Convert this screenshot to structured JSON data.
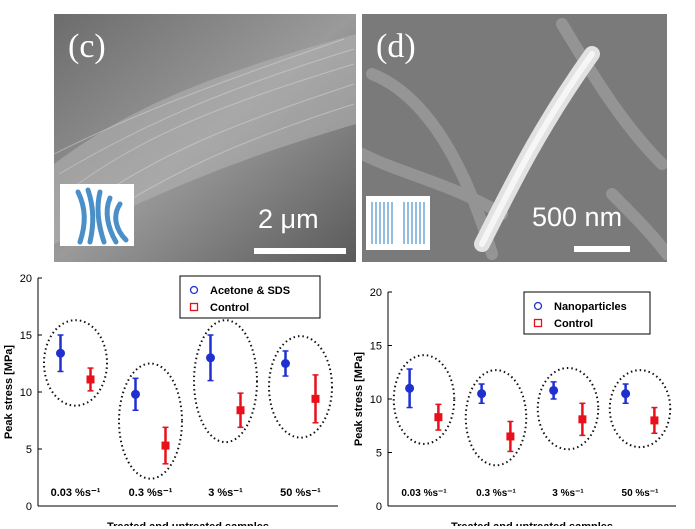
{
  "figure": {
    "panel_c": {
      "label": "(c)",
      "scale_text": "2 μm"
    },
    "panel_d": {
      "label": "(d)",
      "scale_text": "500 nm"
    }
  },
  "colors": {
    "treated": "#1f2fd0",
    "control": "#e8101a",
    "ellipse": "#111111"
  },
  "chart_data": [
    {
      "type": "scatter",
      "title": "",
      "xlabel": "Treated and untreated samples",
      "ylabel": "Peak stress [MPa]",
      "ylim": [
        0,
        20
      ],
      "yticks": [
        0,
        5,
        10,
        15,
        20
      ],
      "categories": [
        "0.03 %s⁻¹",
        "0.3 %s⁻¹",
        "3 %s⁻¹",
        "50 %s⁻¹"
      ],
      "legend_placement": "top-right",
      "series": [
        {
          "name": "Acetone & SDS",
          "values": [
            13.4,
            9.8,
            13.0,
            12.5
          ],
          "err": [
            1.6,
            1.4,
            2.0,
            1.1
          ]
        },
        {
          "name": "Control",
          "values": [
            11.1,
            5.3,
            8.4,
            9.4
          ],
          "err": [
            1.0,
            1.6,
            1.5,
            2.1
          ]
        }
      ]
    },
    {
      "type": "scatter",
      "title": "",
      "xlabel": "Treated and untreated samples",
      "ylabel": "Peak stress [MPa]",
      "ylim": [
        0,
        20
      ],
      "yticks": [
        0,
        5,
        10,
        15,
        20
      ],
      "categories": [
        "0.03 %s⁻¹",
        "0.3 %s⁻¹",
        "3 %s⁻¹",
        "50 %s⁻¹"
      ],
      "legend_placement": "top-right",
      "series": [
        {
          "name": "Nanoparticles",
          "values": [
            11.0,
            10.5,
            10.8,
            10.5
          ],
          "err": [
            1.8,
            0.9,
            0.8,
            0.9
          ]
        },
        {
          "name": "Control",
          "values": [
            8.3,
            6.5,
            8.1,
            8.0
          ],
          "err": [
            1.2,
            1.4,
            1.5,
            1.2
          ]
        }
      ]
    }
  ]
}
